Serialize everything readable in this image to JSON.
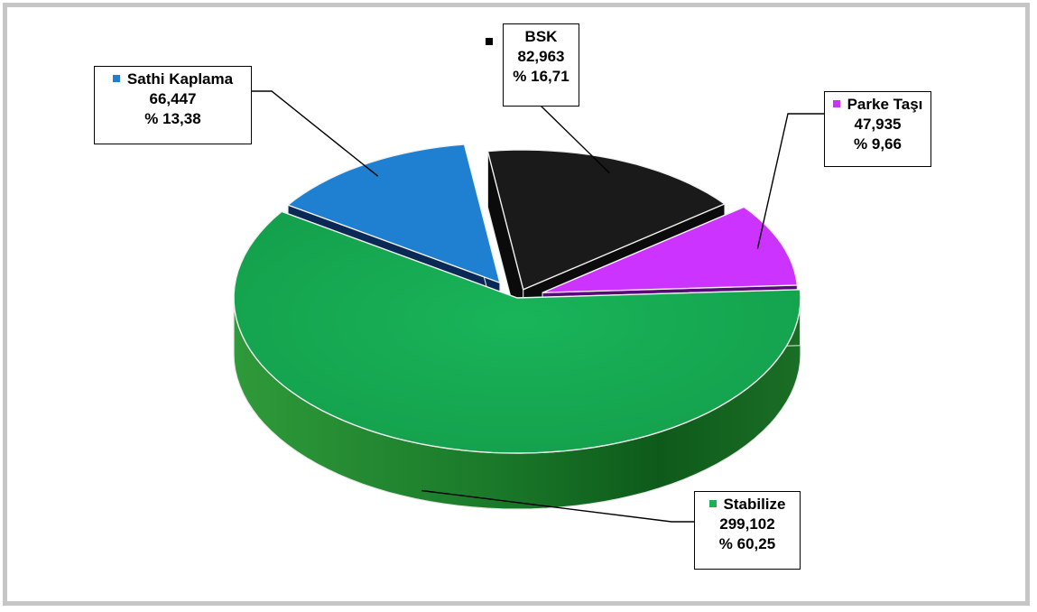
{
  "chart_data": {
    "type": "pie",
    "style": "3d-exploded",
    "legend": "callout-labels",
    "slices": [
      {
        "label": "BSK",
        "value": 82963,
        "value_text": "82,963",
        "percent_text": "% 16,71",
        "color": "#1a1a1a"
      },
      {
        "label": "Parke Taşı",
        "value": 47935,
        "value_text": "47,935",
        "percent_text": "% 9,66",
        "color": "#cc33ff"
      },
      {
        "label": "Stabilize",
        "value": 299102,
        "value_text": "299,102",
        "percent_text": "% 60,25",
        "color": "#1faf55"
      },
      {
        "label": "Sathi Kaplama",
        "value": 66447,
        "value_text": "66,447",
        "percent_text": "% 13,38",
        "color": "#1f7fd0"
      }
    ]
  }
}
